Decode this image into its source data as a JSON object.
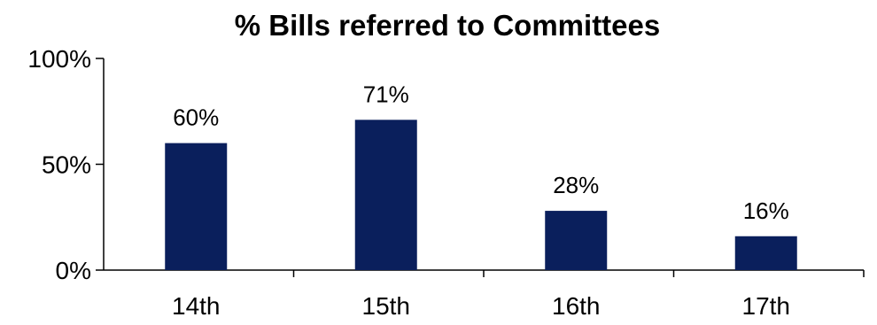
{
  "chart_data": {
    "type": "bar",
    "title": "% Bills referred to Committees",
    "xlabel": "",
    "ylabel": "",
    "categories": [
      "14th",
      "15th",
      "16th",
      "17th"
    ],
    "values": [
      60,
      71,
      28,
      16
    ],
    "data_labels": [
      "60%",
      "71%",
      "28%",
      "16%"
    ],
    "ylim": [
      0,
      100
    ],
    "yticks": [
      0,
      50,
      100
    ],
    "ytick_labels": [
      "0%",
      "50%",
      "100%"
    ],
    "bar_color": "#0a1f5c",
    "grid": false,
    "legend": "none"
  }
}
